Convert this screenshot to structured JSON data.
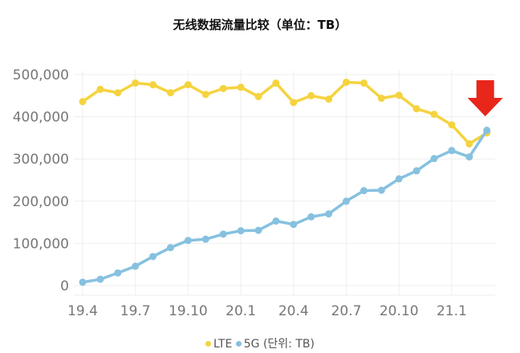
{
  "chart_data": {
    "type": "line",
    "title": "无线数据流量比较（单位：TB）",
    "categories": [
      "19.4",
      "19.5",
      "19.6",
      "19.7",
      "19.8",
      "19.9",
      "19.10",
      "19.11",
      "19.12",
      "20.1",
      "20.2",
      "20.3",
      "20.4",
      "20.5",
      "20.6",
      "20.7",
      "20.8",
      "20.9",
      "20.10",
      "20.11",
      "20.12",
      "21.1",
      "21.2",
      "21.3"
    ],
    "x_tick_labels": [
      "19.4",
      "19.7",
      "19.10",
      "20.1",
      "20.4",
      "20.7",
      "20.10",
      "21.1"
    ],
    "y_tick_labels": [
      "0",
      "100,000",
      "200,000",
      "300,000",
      "400,000",
      "500,000"
    ],
    "ylim": [
      0,
      500000
    ],
    "grid": true,
    "legend_position": "bottom",
    "series": [
      {
        "name": "LTE",
        "color": "#f5d33f",
        "values": [
          436000,
          465000,
          457000,
          480000,
          476000,
          457000,
          476000,
          453000,
          467000,
          470000,
          448000,
          480000,
          434000,
          450000,
          442000,
          482000,
          480000,
          444000,
          451000,
          419000,
          406000,
          381000,
          336000,
          362000
        ]
      },
      {
        "name": "5G (단위: TB)",
        "color": "#86c1df",
        "values": [
          8000,
          15000,
          30000,
          46000,
          69000,
          90000,
          107000,
          110000,
          122000,
          130000,
          131000,
          153000,
          145000,
          163000,
          170000,
          200000,
          225000,
          226000,
          253000,
          272000,
          301000,
          320000,
          305000,
          368000
        ]
      }
    ],
    "annotation": {
      "type": "arrow-down",
      "color": "#e8261a",
      "at": "21.3"
    }
  }
}
